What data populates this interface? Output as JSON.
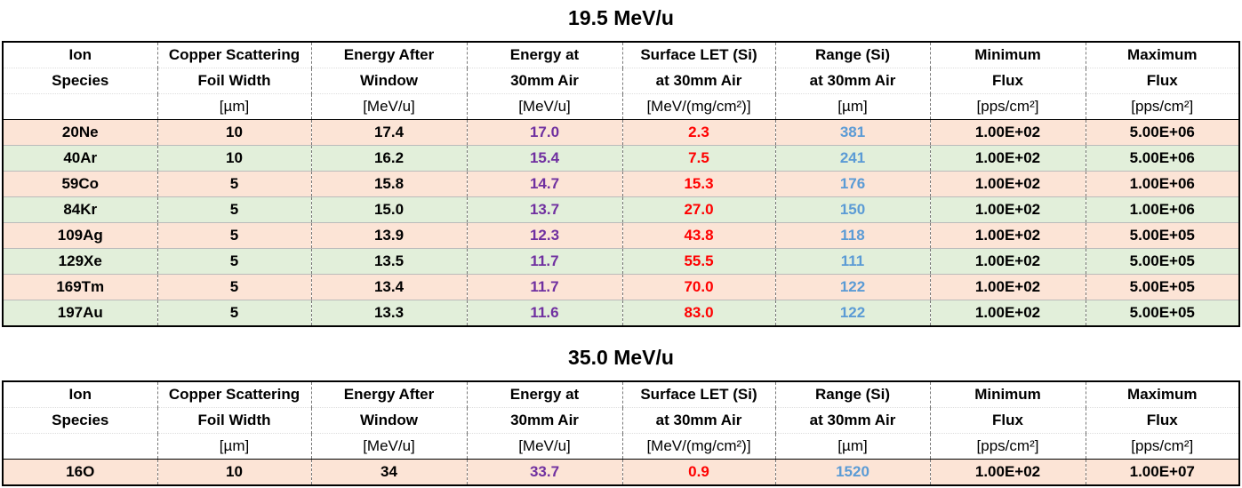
{
  "tables": [
    {
      "title": "19.5 MeV/u",
      "header": [
        [
          "Ion",
          "Copper Scattering",
          "Energy After",
          "Energy at",
          "Surface LET (Si)",
          "Range (Si)",
          "Minimum",
          "Maximum"
        ],
        [
          "Species",
          "Foil Width",
          "Window",
          "30mm Air",
          "at 30mm Air",
          "at 30mm Air",
          "Flux",
          "Flux"
        ],
        [
          null,
          "[µm]",
          "[MeV/u]",
          "[MeV/u]",
          "[MeV/(mg/cm²)]",
          "[µm]",
          "[pps/cm²]",
          "[pps/cm²]"
        ]
      ],
      "rows": [
        [
          "20Ne",
          "10",
          "17.4",
          "17.0",
          "2.3",
          "381",
          "1.00E+02",
          "5.00E+06"
        ],
        [
          "40Ar",
          "10",
          "16.2",
          "15.4",
          "7.5",
          "241",
          "1.00E+02",
          "5.00E+06"
        ],
        [
          "59Co",
          "5",
          "15.8",
          "14.7",
          "15.3",
          "176",
          "1.00E+02",
          "1.00E+06"
        ],
        [
          "84Kr",
          "5",
          "15.0",
          "13.7",
          "27.0",
          "150",
          "1.00E+02",
          "1.00E+06"
        ],
        [
          "109Ag",
          "5",
          "13.9",
          "12.3",
          "43.8",
          "118",
          "1.00E+02",
          "5.00E+05"
        ],
        [
          "129Xe",
          "5",
          "13.5",
          "11.7",
          "55.5",
          "111",
          "1.00E+02",
          "5.00E+05"
        ],
        [
          "169Tm",
          "5",
          "13.4",
          "11.7",
          "70.0",
          "122",
          "1.00E+02",
          "5.00E+05"
        ],
        [
          "197Au",
          "5",
          "13.3",
          "11.6",
          "83.0",
          "122",
          "1.00E+02",
          "5.00E+05"
        ]
      ]
    },
    {
      "title": "35.0 MeV/u",
      "header": [
        [
          "Ion",
          "Copper Scattering",
          "Energy After",
          "Energy at",
          "Surface LET (Si)",
          "Range (Si)",
          "Minimum",
          "Maximum"
        ],
        [
          "Species",
          "Foil Width",
          "Window",
          "30mm Air",
          "at 30mm Air",
          "at 30mm Air",
          "Flux",
          "Flux"
        ],
        [
          null,
          "[µm]",
          "[MeV/u]",
          "[MeV/u]",
          "[MeV/(mg/cm²)]",
          "[µm]",
          "[pps/cm²]",
          "[pps/cm²]"
        ]
      ],
      "rows": [
        [
          "16O",
          "10",
          "34",
          "33.7",
          "0.9",
          "1520",
          "1.00E+02",
          "1.00E+07"
        ]
      ]
    }
  ]
}
